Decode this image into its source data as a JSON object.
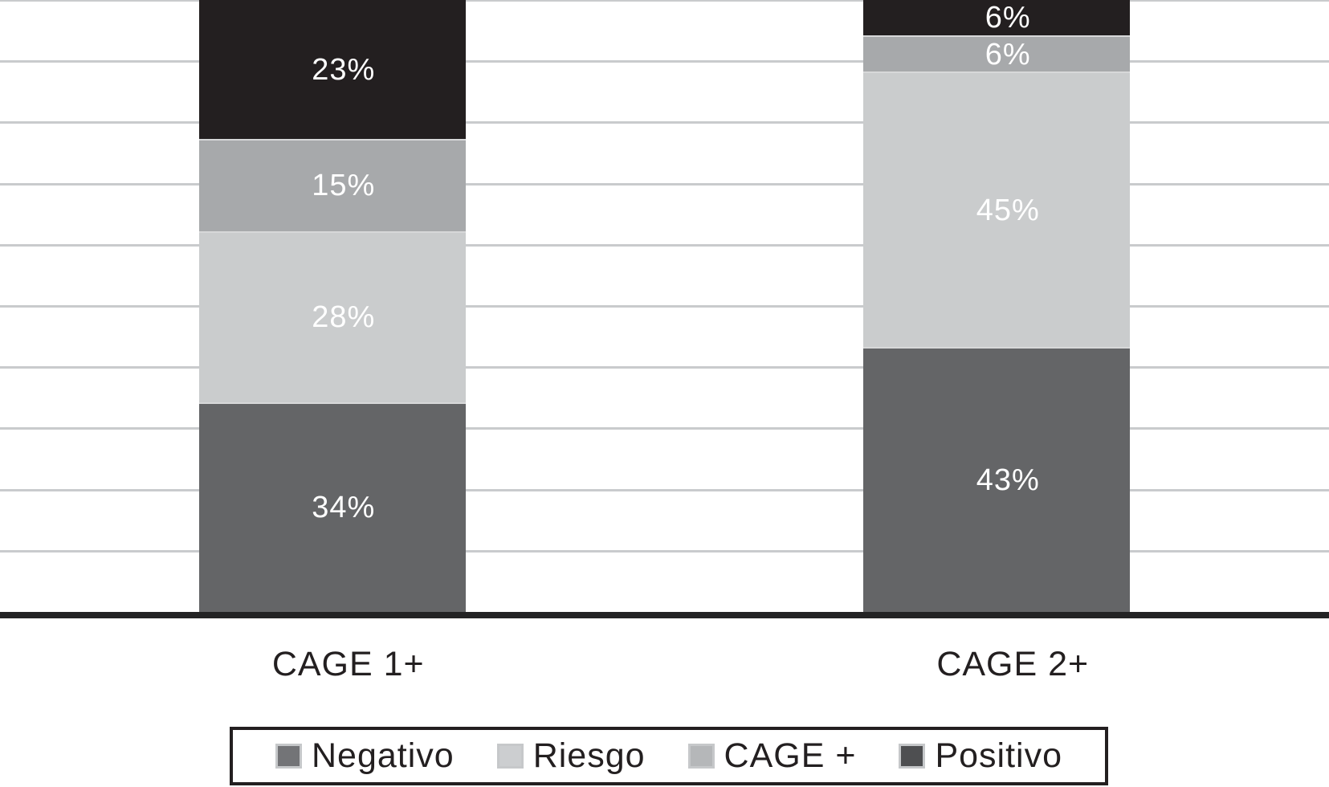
{
  "chart_data": {
    "type": "bar",
    "subtype": "stacked-100-percent",
    "title": "",
    "xlabel": "",
    "ylabel": "",
    "categories": [
      "CAGE 1+",
      "CAGE 2+"
    ],
    "series": [
      {
        "name": "Negativo",
        "color": "#646567",
        "swatch_color": "#737477",
        "values": [
          34,
          43
        ],
        "labels": [
          "34%",
          "43%"
        ]
      },
      {
        "name": "Riesgo",
        "color": "#cacccd",
        "swatch_color": "#ccced0",
        "values": [
          28,
          45
        ],
        "labels": [
          "28%",
          "45%"
        ]
      },
      {
        "name": "CAGE +",
        "color": "#a7a9ab",
        "swatch_color": "#b5b7b9",
        "values": [
          15,
          6
        ],
        "labels": [
          "15%",
          "6%"
        ]
      },
      {
        "name": "Positivo",
        "color": "#231f20",
        "swatch_color": "#4e4f51",
        "values": [
          23,
          6
        ],
        "labels": [
          "23%",
          "6%"
        ]
      }
    ],
    "stack_order_bottom_to_top": [
      "Negativo",
      "Riesgo",
      "CAGE +",
      "Positivo"
    ],
    "legend": {
      "position": "bottom",
      "boxed": true,
      "entries": [
        "Negativo",
        "Riesgo",
        "CAGE +",
        "Positivo"
      ]
    },
    "ylim": [
      0,
      100
    ],
    "gridlines": true,
    "gridline_interval_percent": 10,
    "y_tick_labels_visible": false,
    "data_label_suffix": "%",
    "value_label_color": "#ffffff"
  },
  "colors": {
    "background": "#ffffff",
    "gridline": "#c9cbcd",
    "axis_line": "#232324",
    "segment_separator": "#d7d8d9",
    "text": "#231f20",
    "legend_border": "#231f20",
    "swatch_border": "#c6c8ca"
  }
}
